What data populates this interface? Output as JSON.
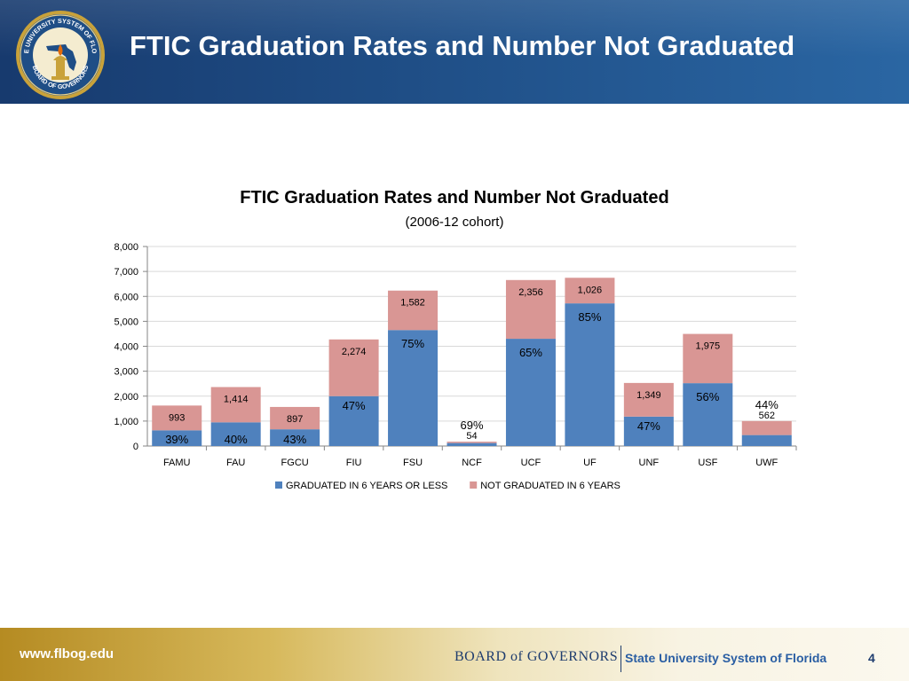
{
  "header": {
    "title": "FTIC Graduation Rates and Number Not Graduated",
    "seal_text": "STATE UNIVERSITY SYSTEM OF FLORIDA · BOARD OF GOVERNORS"
  },
  "footer": {
    "url": "www.flbog.edu",
    "board": "BOARD of GOVERNORS",
    "system": "State University System of Florida",
    "page_number": "4"
  },
  "colors": {
    "graduated": "#4f81bd",
    "not_graduated": "#d99694",
    "header_blue": "#1f4e86",
    "footer_gold": "#c9a23a"
  },
  "chart_data": {
    "type": "bar",
    "stacked": true,
    "title": "FTIC Graduation Rates and Number Not Graduated",
    "subtitle": "(2006-12 cohort)",
    "xlabel": "",
    "ylabel": "",
    "ylim": [
      0,
      8000
    ],
    "yticks": [
      0,
      1000,
      2000,
      3000,
      4000,
      5000,
      6000,
      7000,
      8000
    ],
    "ytick_labels": [
      "0",
      "1,000",
      "2,000",
      "3,000",
      "4,000",
      "5,000",
      "6,000",
      "7,000",
      "8,000"
    ],
    "grid": true,
    "legend": "bottom",
    "categories": [
      "FAMU",
      "FAU",
      "FGCU",
      "FIU",
      "FSU",
      "NCF",
      "UCF",
      "UF",
      "UNF",
      "USF",
      "UWF"
    ],
    "series": [
      {
        "name": "GRADUATED IN 6 YEARS OR LESS",
        "values": [
          630,
          950,
          670,
          2000,
          4650,
          120,
          4300,
          5720,
          1180,
          2520,
          440
        ],
        "labels": [
          "39%",
          "40%",
          "43%",
          "47%",
          "75%",
          "69%",
          "65%",
          "85%",
          "47%",
          "56%",
          "44%"
        ]
      },
      {
        "name": "NOT GRADUATED IN 6 YEARS",
        "values": [
          993,
          1414,
          897,
          2274,
          1582,
          54,
          2356,
          1026,
          1349,
          1975,
          562
        ],
        "labels": [
          "993",
          "1,414",
          "897",
          "2,274",
          "1,582",
          "54",
          "2,356",
          "1,026",
          "1,349",
          "1,975",
          "562"
        ]
      }
    ]
  }
}
